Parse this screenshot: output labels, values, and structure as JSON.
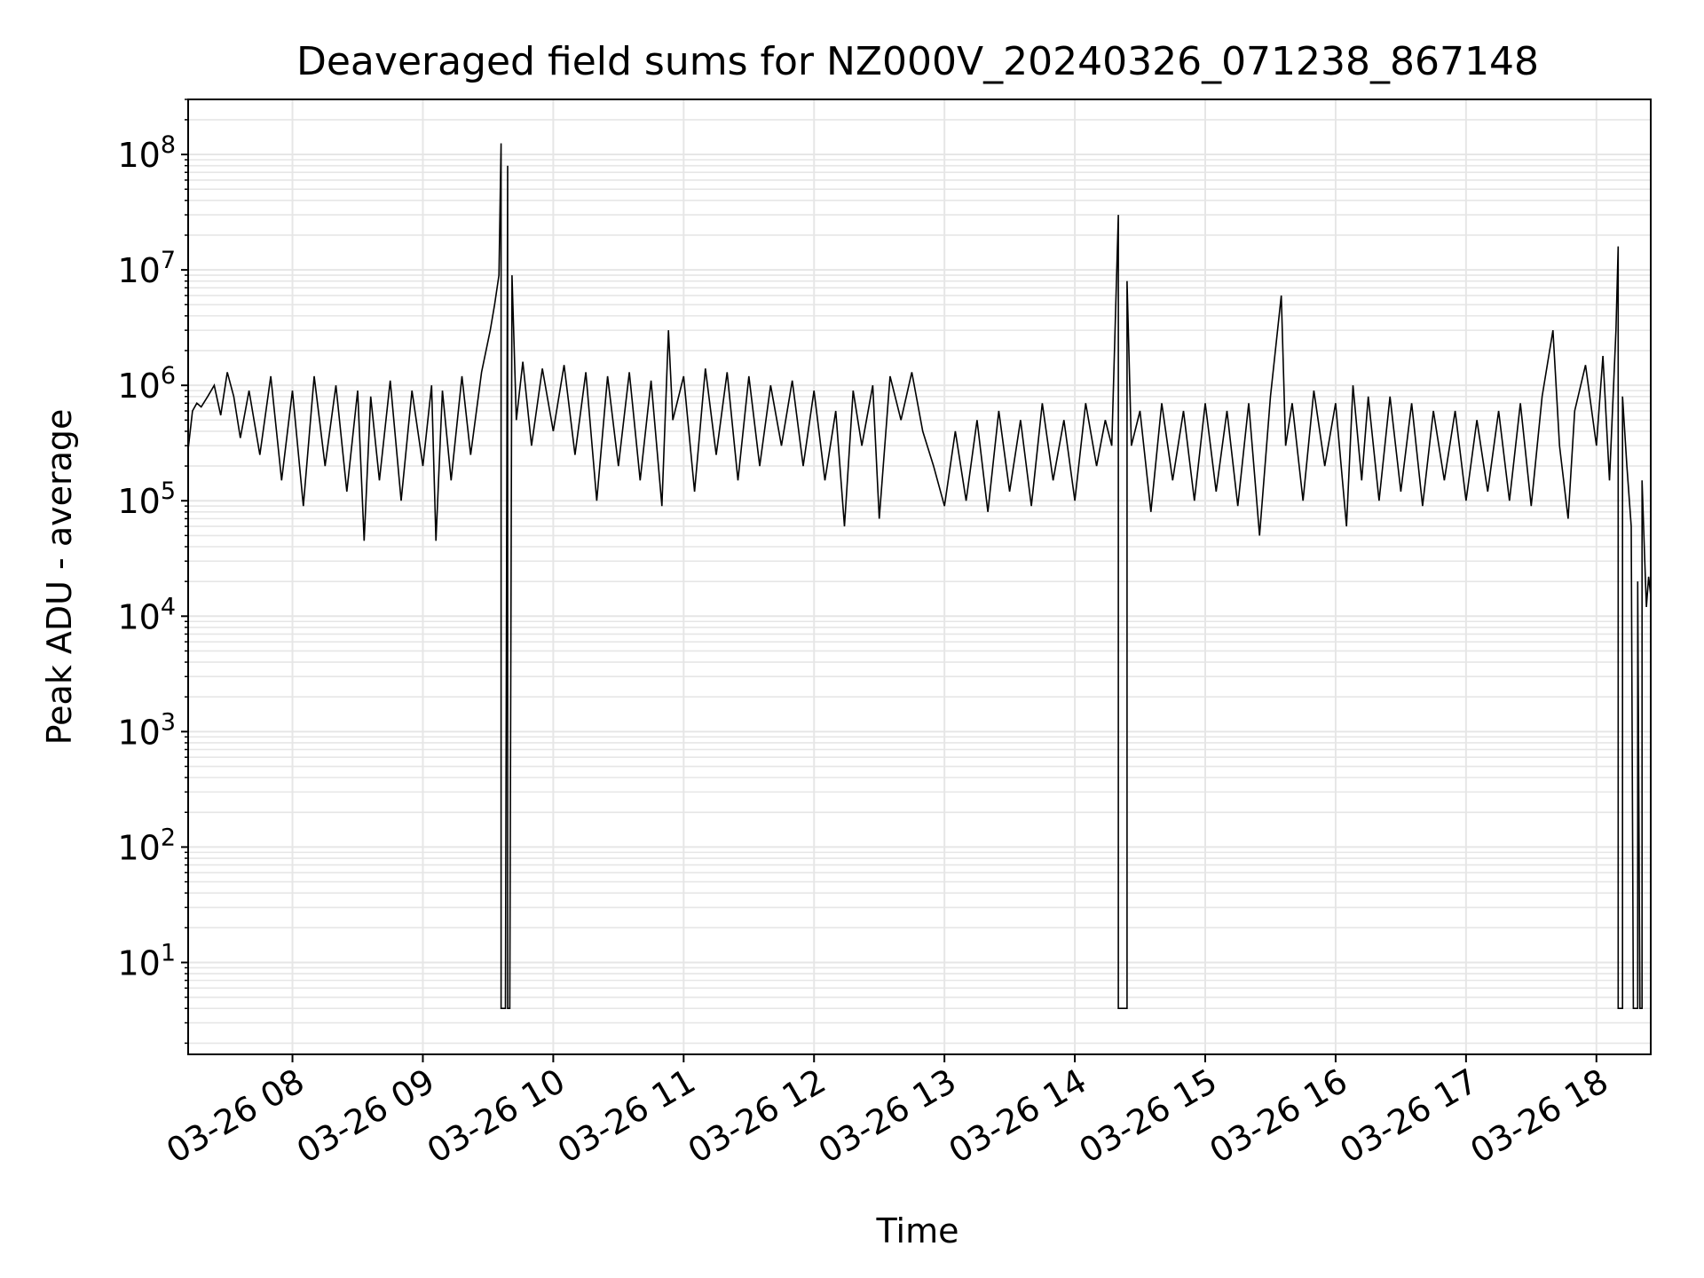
{
  "chart_data": {
    "type": "line",
    "title": "Deaveraged field sums for NZ000V_20240326_071238_867148",
    "xlabel": "Time",
    "ylabel": "Peak ADU - average",
    "yscale": "log",
    "grid": "on (major and minor)",
    "xlim": [
      "03-26 07:12",
      "03-26 18:25"
    ],
    "ylim": [
      1.6,
      300000000
    ],
    "x_ticks": [
      {
        "t": "03-26 08:00",
        "label": "03-26 08"
      },
      {
        "t": "03-26 09:00",
        "label": "03-26 09"
      },
      {
        "t": "03-26 10:00",
        "label": "03-26 10"
      },
      {
        "t": "03-26 11:00",
        "label": "03-26 11"
      },
      {
        "t": "03-26 12:00",
        "label": "03-26 12"
      },
      {
        "t": "03-26 13:00",
        "label": "03-26 13"
      },
      {
        "t": "03-26 14:00",
        "label": "03-26 14"
      },
      {
        "t": "03-26 15:00",
        "label": "03-26 15"
      },
      {
        "t": "03-26 16:00",
        "label": "03-26 16"
      },
      {
        "t": "03-26 17:00",
        "label": "03-26 17"
      },
      {
        "t": "03-26 18:00",
        "label": "03-26 18"
      }
    ],
    "y_ticks": [
      {
        "exp": 1,
        "base": "10",
        "sup": "1"
      },
      {
        "exp": 2,
        "base": "10",
        "sup": "2"
      },
      {
        "exp": 3,
        "base": "10",
        "sup": "3"
      },
      {
        "exp": 4,
        "base": "10",
        "sup": "4"
      },
      {
        "exp": 5,
        "base": "10",
        "sup": "5"
      },
      {
        "exp": 6,
        "base": "10",
        "sup": "6"
      },
      {
        "exp": 7,
        "base": "10",
        "sup": "7"
      },
      {
        "exp": 8,
        "base": "10",
        "sup": "8"
      }
    ],
    "series": [
      {
        "color": "#000000",
        "points": [
          [
            "03-26 07:12",
            280000
          ],
          [
            "03-26 07:14",
            600000
          ],
          [
            "03-26 07:16",
            700000
          ],
          [
            "03-26 07:18",
            650000
          ],
          [
            "03-26 07:21",
            800000
          ],
          [
            "03-26 07:24",
            1000000
          ],
          [
            "03-26 07:27",
            550000
          ],
          [
            "03-26 07:30",
            1300000
          ],
          [
            "03-26 07:33",
            800000
          ],
          [
            "03-26 07:36",
            350000
          ],
          [
            "03-26 07:40",
            900000
          ],
          [
            "03-26 07:45",
            250000
          ],
          [
            "03-26 07:50",
            1200000
          ],
          [
            "03-26 07:55",
            150000
          ],
          [
            "03-26 08:00",
            900000
          ],
          [
            "03-26 08:05",
            90000
          ],
          [
            "03-26 08:10",
            1200000
          ],
          [
            "03-26 08:15",
            200000
          ],
          [
            "03-26 08:20",
            1000000
          ],
          [
            "03-26 08:25",
            120000
          ],
          [
            "03-26 08:30",
            900000
          ],
          [
            "03-26 08:33",
            45000
          ],
          [
            "03-26 08:36",
            800000
          ],
          [
            "03-26 08:40",
            150000
          ],
          [
            "03-26 08:45",
            1100000
          ],
          [
            "03-26 08:50",
            100000
          ],
          [
            "03-26 08:55",
            900000
          ],
          [
            "03-26 09:00",
            200000
          ],
          [
            "03-26 09:04",
            1000000
          ],
          [
            "03-26 09:06",
            45000
          ],
          [
            "03-26 09:09",
            900000
          ],
          [
            "03-26 09:13",
            150000
          ],
          [
            "03-26 09:18",
            1200000
          ],
          [
            "03-26 09:22",
            250000
          ],
          [
            "03-26 09:27",
            1300000
          ],
          [
            "03-26 09:31",
            3000000
          ],
          [
            "03-26 09:33",
            5000000
          ],
          [
            "03-26 09:35",
            9000000
          ],
          [
            "03-26 09:36",
            125000000
          ],
          [
            "03-26 09:36",
            4
          ],
          [
            "03-26 09:38",
            4
          ],
          [
            "03-26 09:39",
            80000000
          ],
          [
            "03-26 09:39",
            4
          ],
          [
            "03-26 09:40",
            4
          ],
          [
            "03-26 09:41",
            9000000
          ],
          [
            "03-26 09:43",
            500000
          ],
          [
            "03-26 09:46",
            1600000
          ],
          [
            "03-26 09:50",
            300000
          ],
          [
            "03-26 09:55",
            1400000
          ],
          [
            "03-26 10:00",
            400000
          ],
          [
            "03-26 10:05",
            1500000
          ],
          [
            "03-26 10:10",
            250000
          ],
          [
            "03-26 10:15",
            1300000
          ],
          [
            "03-26 10:20",
            100000
          ],
          [
            "03-26 10:25",
            1200000
          ],
          [
            "03-26 10:30",
            200000
          ],
          [
            "03-26 10:35",
            1300000
          ],
          [
            "03-26 10:40",
            150000
          ],
          [
            "03-26 10:45",
            1100000
          ],
          [
            "03-26 10:50",
            90000
          ],
          [
            "03-26 10:53",
            3000000
          ],
          [
            "03-26 10:55",
            500000
          ],
          [
            "03-26 11:00",
            1200000
          ],
          [
            "03-26 11:05",
            120000
          ],
          [
            "03-26 11:10",
            1400000
          ],
          [
            "03-26 11:15",
            250000
          ],
          [
            "03-26 11:20",
            1300000
          ],
          [
            "03-26 11:25",
            150000
          ],
          [
            "03-26 11:30",
            1200000
          ],
          [
            "03-26 11:35",
            200000
          ],
          [
            "03-26 11:40",
            1000000
          ],
          [
            "03-26 11:45",
            300000
          ],
          [
            "03-26 11:50",
            1100000
          ],
          [
            "03-26 11:55",
            200000
          ],
          [
            "03-26 12:00",
            900000
          ],
          [
            "03-26 12:05",
            150000
          ],
          [
            "03-26 12:10",
            600000
          ],
          [
            "03-26 12:14",
            60000
          ],
          [
            "03-26 12:18",
            900000
          ],
          [
            "03-26 12:22",
            300000
          ],
          [
            "03-26 12:27",
            1000000
          ],
          [
            "03-26 12:30",
            70000
          ],
          [
            "03-26 12:35",
            1200000
          ],
          [
            "03-26 12:40",
            500000
          ],
          [
            "03-26 12:45",
            1300000
          ],
          [
            "03-26 12:50",
            400000
          ],
          [
            "03-26 12:55",
            200000
          ],
          [
            "03-26 13:00",
            90000
          ],
          [
            "03-26 13:05",
            400000
          ],
          [
            "03-26 13:10",
            100000
          ],
          [
            "03-26 13:15",
            500000
          ],
          [
            "03-26 13:20",
            80000
          ],
          [
            "03-26 13:25",
            600000
          ],
          [
            "03-26 13:30",
            120000
          ],
          [
            "03-26 13:35",
            500000
          ],
          [
            "03-26 13:40",
            90000
          ],
          [
            "03-26 13:45",
            700000
          ],
          [
            "03-26 13:50",
            150000
          ],
          [
            "03-26 13:55",
            500000
          ],
          [
            "03-26 14:00",
            100000
          ],
          [
            "03-26 14:05",
            700000
          ],
          [
            "03-26 14:10",
            200000
          ],
          [
            "03-26 14:14",
            500000
          ],
          [
            "03-26 14:17",
            300000
          ],
          [
            "03-26 14:20",
            30000000
          ],
          [
            "03-26 14:20",
            4
          ],
          [
            "03-26 14:24",
            4
          ],
          [
            "03-26 14:24",
            8000000
          ],
          [
            "03-26 14:26",
            300000
          ],
          [
            "03-26 14:30",
            600000
          ],
          [
            "03-26 14:35",
            80000
          ],
          [
            "03-26 14:40",
            700000
          ],
          [
            "03-26 14:45",
            150000
          ],
          [
            "03-26 14:50",
            600000
          ],
          [
            "03-26 14:55",
            100000
          ],
          [
            "03-26 15:00",
            700000
          ],
          [
            "03-26 15:05",
            120000
          ],
          [
            "03-26 15:10",
            600000
          ],
          [
            "03-26 15:15",
            90000
          ],
          [
            "03-26 15:20",
            700000
          ],
          [
            "03-26 15:25",
            50000
          ],
          [
            "03-26 15:30",
            800000
          ],
          [
            "03-26 15:35",
            6000000
          ],
          [
            "03-26 15:37",
            300000
          ],
          [
            "03-26 15:40",
            700000
          ],
          [
            "03-26 15:45",
            100000
          ],
          [
            "03-26 15:50",
            900000
          ],
          [
            "03-26 15:55",
            200000
          ],
          [
            "03-26 16:00",
            700000
          ],
          [
            "03-26 16:05",
            60000
          ],
          [
            "03-26 16:08",
            1000000
          ],
          [
            "03-26 16:12",
            150000
          ],
          [
            "03-26 16:15",
            800000
          ],
          [
            "03-26 16:20",
            100000
          ],
          [
            "03-26 16:25",
            800000
          ],
          [
            "03-26 16:30",
            120000
          ],
          [
            "03-26 16:35",
            700000
          ],
          [
            "03-26 16:40",
            90000
          ],
          [
            "03-26 16:45",
            600000
          ],
          [
            "03-26 16:50",
            150000
          ],
          [
            "03-26 16:55",
            600000
          ],
          [
            "03-26 17:00",
            100000
          ],
          [
            "03-26 17:05",
            500000
          ],
          [
            "03-26 17:10",
            120000
          ],
          [
            "03-26 17:15",
            600000
          ],
          [
            "03-26 17:20",
            100000
          ],
          [
            "03-26 17:25",
            700000
          ],
          [
            "03-26 17:30",
            90000
          ],
          [
            "03-26 17:35",
            800000
          ],
          [
            "03-26 17:40",
            3000000
          ],
          [
            "03-26 17:43",
            300000
          ],
          [
            "03-26 17:47",
            70000
          ],
          [
            "03-26 17:50",
            600000
          ],
          [
            "03-26 17:55",
            1500000
          ],
          [
            "03-26 18:00",
            300000
          ],
          [
            "03-26 18:03",
            1800000
          ],
          [
            "03-26 18:06",
            150000
          ],
          [
            "03-26 18:09",
            3000000
          ],
          [
            "03-26 18:10",
            16000000
          ],
          [
            "03-26 18:10",
            4
          ],
          [
            "03-26 18:12",
            4
          ],
          [
            "03-26 18:12",
            800000
          ],
          [
            "03-26 18:14",
            200000
          ],
          [
            "03-26 18:16",
            60000
          ],
          [
            "03-26 18:17",
            4
          ],
          [
            "03-26 18:19",
            4
          ],
          [
            "03-26 18:19",
            20000
          ],
          [
            "03-26 18:20",
            4
          ],
          [
            "03-26 18:21",
            4
          ],
          [
            "03-26 18:21",
            150000
          ],
          [
            "03-26 18:22",
            40000
          ],
          [
            "03-26 18:23",
            12000
          ],
          [
            "03-26 18:24",
            22000
          ],
          [
            "03-26 18:25",
            15000
          ]
        ]
      }
    ]
  }
}
